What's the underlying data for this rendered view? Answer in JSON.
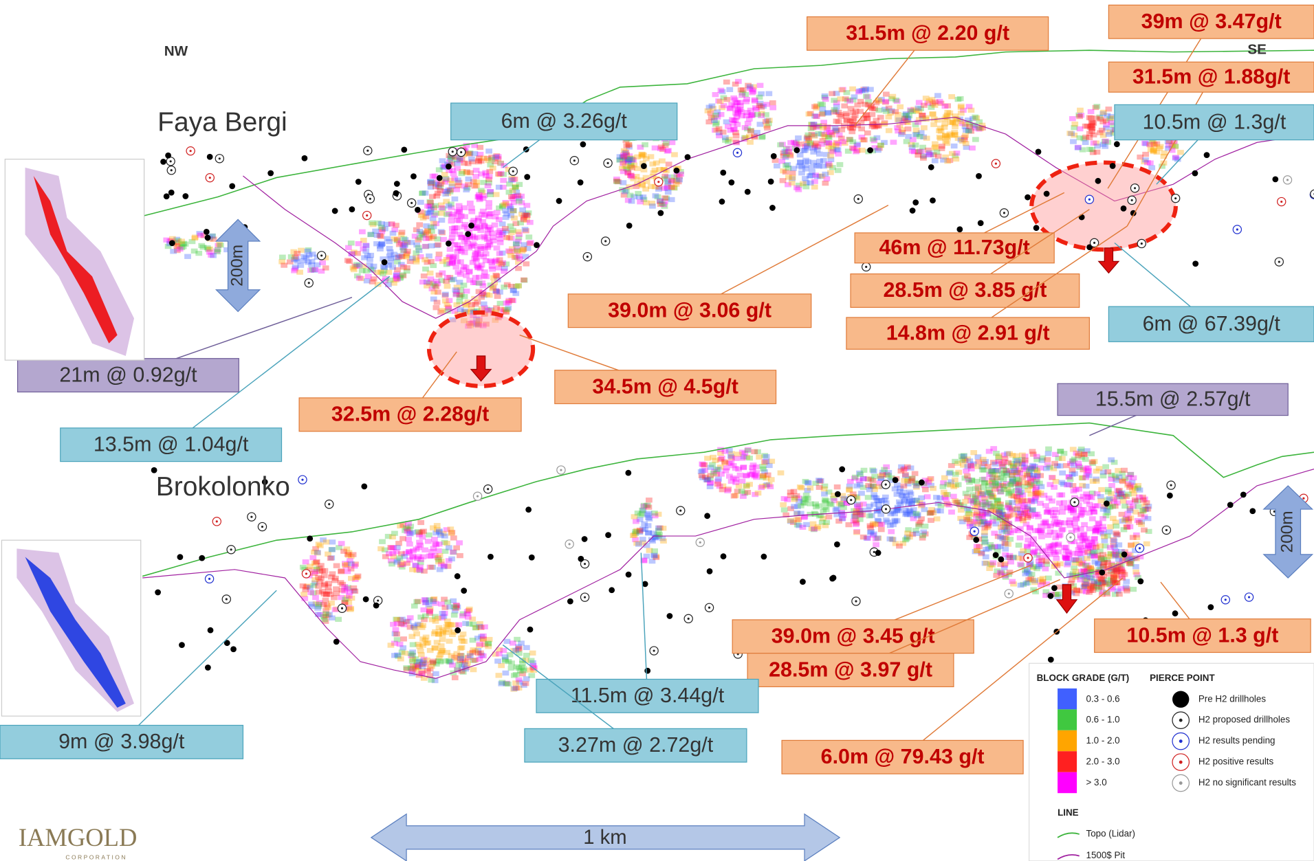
{
  "header": {
    "nw": "NW",
    "se": "SE"
  },
  "sections": [
    {
      "title": "Faya Bergi",
      "scale": "200m",
      "callouts": [
        "31.5m @ 2.20 g/t",
        "39m @ 3.47g/t",
        "31.5m @ 1.88g/t",
        "10.5m @ 1.3g/t",
        "6m @ 3.26g/t",
        "46m @ 11.73g/t",
        "28.5m @ 3.85 g/t",
        "14.8m @ 2.91 g/t",
        "6m @ 67.39g/t",
        "39.0m @ 3.06 g/t",
        "34.5m @ 4.5g/t",
        "32.5m @ 2.28g/t",
        "21m @ 0.92g/t",
        "13.5m @ 1.04g/t"
      ]
    },
    {
      "title": "Brokolonko",
      "scale": "200m",
      "callouts": [
        "15.5m @ 2.57g/t",
        "39.0m @ 3.45 g/t",
        "28.5m @ 3.97 g/t",
        "10.5m @ 1.3 g/t",
        "6.0m @ 79.43 g/t",
        "11.5m @ 3.44g/t",
        "3.27m @ 2.72g/t",
        "9m @ 3.98g/t"
      ]
    }
  ],
  "scale_bar": "1 km",
  "logo": {
    "name": "IAMGOLD",
    "sub": "CORPORATION"
  },
  "legend": {
    "grade_title": "BLOCK GRADE (G/T)",
    "grades": [
      "0.3 - 0.6",
      "0.6 - 1.0",
      "1.0 - 2.0",
      "2.0 - 3.0",
      "> 3.0"
    ],
    "pierce_title": "PIERCE POINT",
    "pierce": [
      "Pre H2 drillholes",
      "H2 proposed drillholes",
      "H2 results pending",
      "H2 positive results",
      "H2 no significant results"
    ],
    "line_title": "LINE",
    "lines": [
      "Topo (Lidar)",
      "1500$ Pit"
    ]
  }
}
